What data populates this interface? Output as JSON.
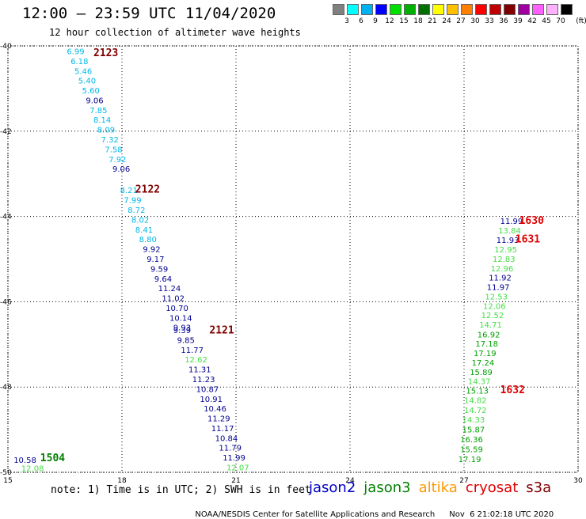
{
  "header": {
    "title": "12:00 – 23:59 UTC 11/04/2020",
    "subtitle": "12 hour collection of altimeter wave heights"
  },
  "legend": {
    "colors": [
      "#808080",
      "#00ffff",
      "#00b0f0",
      "#0000ff",
      "#00e000",
      "#00b000",
      "#007000",
      "#ffff00",
      "#ffc000",
      "#ff8000",
      "#ff0000",
      "#c00000",
      "#800000",
      "#a000a0",
      "#ff60ff",
      "#ffb0ff",
      "#000000"
    ],
    "ticks": [
      "3",
      "6",
      "9",
      "12",
      "15",
      "18",
      "21",
      "24",
      "27",
      "30",
      "33",
      "36",
      "39",
      "42",
      "45",
      "70"
    ],
    "unit": "(ft)"
  },
  "map": {
    "lon_range": [
      15,
      30
    ],
    "lat_range": [
      -50,
      -40
    ],
    "lon_ticks": [
      "15",
      "18",
      "21",
      "24",
      "27",
      "30"
    ],
    "lat_ticks": [
      "-40",
      "-42",
      "-44",
      "-46",
      "-48",
      "-50"
    ]
  },
  "colors": {
    "jason2": "#0000c8",
    "jason3": "#008000",
    "altika": "#ff9900",
    "cryosat": "#e00000",
    "s3a": "#800000",
    "c_lightgreen": "#44dd44",
    "c_green": "#00a000",
    "c_cyan": "#00b8e8",
    "c_navy": "#000090"
  },
  "points": [
    {
      "lon": 16.55,
      "lat": -40.12,
      "v": "6.99",
      "c": "c_cyan"
    },
    {
      "lon": 16.65,
      "lat": -40.35,
      "v": "6.18",
      "c": "c_cyan"
    },
    {
      "lon": 16.75,
      "lat": -40.58,
      "v": "5.46",
      "c": "c_cyan"
    },
    {
      "lon": 16.85,
      "lat": -40.81,
      "v": "5.40",
      "c": "c_cyan"
    },
    {
      "lon": 16.95,
      "lat": -41.04,
      "v": "5.60",
      "c": "c_cyan"
    },
    {
      "lon": 17.05,
      "lat": -41.27,
      "v": "9.06",
      "c": "c_navy"
    },
    {
      "lon": 17.15,
      "lat": -41.5,
      "v": "7.85",
      "c": "c_cyan"
    },
    {
      "lon": 17.25,
      "lat": -41.73,
      "v": "8.14",
      "c": "c_cyan"
    },
    {
      "lon": 17.35,
      "lat": -41.96,
      "v": "8.09",
      "c": "c_cyan"
    },
    {
      "lon": 17.45,
      "lat": -42.19,
      "v": "7.32",
      "c": "c_cyan"
    },
    {
      "lon": 17.55,
      "lat": -42.42,
      "v": "7.58",
      "c": "c_cyan"
    },
    {
      "lon": 17.65,
      "lat": -42.65,
      "v": "7.92",
      "c": "c_cyan"
    },
    {
      "lon": 17.75,
      "lat": -42.88,
      "v": "9.06",
      "c": "c_navy"
    },
    {
      "lon": 17.95,
      "lat": -43.38,
      "v": "8.21",
      "c": "c_cyan"
    },
    {
      "lon": 18.05,
      "lat": -43.61,
      "v": "7.99",
      "c": "c_cyan"
    },
    {
      "lon": 18.15,
      "lat": -43.84,
      "v": "8.72",
      "c": "c_cyan"
    },
    {
      "lon": 18.25,
      "lat": -44.07,
      "v": "8.02",
      "c": "c_cyan"
    },
    {
      "lon": 18.35,
      "lat": -44.3,
      "v": "8.41",
      "c": "c_cyan"
    },
    {
      "lon": 18.45,
      "lat": -44.53,
      "v": "8.80",
      "c": "c_cyan"
    },
    {
      "lon": 18.55,
      "lat": -44.76,
      "v": "9.92",
      "c": "c_navy"
    },
    {
      "lon": 18.65,
      "lat": -44.99,
      "v": "9.17",
      "c": "c_navy"
    },
    {
      "lon": 18.75,
      "lat": -45.22,
      "v": "9.59",
      "c": "c_navy"
    },
    {
      "lon": 18.85,
      "lat": -45.45,
      "v": "9.64",
      "c": "c_navy"
    },
    {
      "lon": 18.95,
      "lat": -45.68,
      "v": "11.24",
      "c": "c_navy"
    },
    {
      "lon": 19.05,
      "lat": -45.91,
      "v": "11.02",
      "c": "c_navy"
    },
    {
      "lon": 19.15,
      "lat": -46.14,
      "v": "10.70",
      "c": "c_navy"
    },
    {
      "lon": 19.25,
      "lat": -46.37,
      "v": "10.14",
      "c": "c_navy"
    },
    {
      "lon": 19.35,
      "lat": -46.6,
      "v": "9.93",
      "c": "c_navy"
    },
    {
      "lon": 19.35,
      "lat": -46.66,
      "v": "9.39",
      "c": "c_navy"
    },
    {
      "lon": 19.45,
      "lat": -46.89,
      "v": "9.85",
      "c": "c_navy"
    },
    {
      "lon": 19.55,
      "lat": -47.12,
      "v": "11.77",
      "c": "c_navy"
    },
    {
      "lon": 19.65,
      "lat": -47.35,
      "v": "12.62",
      "c": "c_lightgreen"
    },
    {
      "lon": 19.75,
      "lat": -47.58,
      "v": "11.31",
      "c": "c_navy"
    },
    {
      "lon": 19.85,
      "lat": -47.81,
      "v": "11.23",
      "c": "c_navy"
    },
    {
      "lon": 19.95,
      "lat": -48.04,
      "v": "10.87",
      "c": "c_navy"
    },
    {
      "lon": 20.05,
      "lat": -48.27,
      "v": "10.91",
      "c": "c_navy"
    },
    {
      "lon": 20.15,
      "lat": -48.5,
      "v": "10.46",
      "c": "c_navy"
    },
    {
      "lon": 20.25,
      "lat": -48.73,
      "v": "11.29",
      "c": "c_navy"
    },
    {
      "lon": 20.35,
      "lat": -48.96,
      "v": "11.17",
      "c": "c_navy"
    },
    {
      "lon": 20.45,
      "lat": -49.19,
      "v": "10.84",
      "c": "c_navy"
    },
    {
      "lon": 20.55,
      "lat": -49.42,
      "v": "11.79",
      "c": "c_navy"
    },
    {
      "lon": 20.65,
      "lat": -49.65,
      "v": "11.99",
      "c": "c_navy"
    },
    {
      "lon": 20.75,
      "lat": -49.88,
      "v": "12.07",
      "c": "c_lightgreen"
    },
    {
      "lon": 15.15,
      "lat": -49.7,
      "v": "10.58",
      "c": "c_navy"
    },
    {
      "lon": 15.35,
      "lat": -49.9,
      "v": "12.08",
      "c": "c_lightgreen"
    },
    {
      "lon": 27.95,
      "lat": -44.1,
      "v": "11.99",
      "c": "c_navy"
    },
    {
      "lon": 27.9,
      "lat": -44.32,
      "v": "13.84",
      "c": "c_lightgreen"
    },
    {
      "lon": 27.85,
      "lat": -44.55,
      "v": "11.93",
      "c": "c_navy"
    },
    {
      "lon": 27.8,
      "lat": -44.77,
      "v": "12.95",
      "c": "c_lightgreen"
    },
    {
      "lon": 27.75,
      "lat": -44.99,
      "v": "12.83",
      "c": "c_lightgreen"
    },
    {
      "lon": 27.7,
      "lat": -45.21,
      "v": "12.96",
      "c": "c_lightgreen"
    },
    {
      "lon": 27.65,
      "lat": -45.43,
      "v": "11.92",
      "c": "c_navy"
    },
    {
      "lon": 27.6,
      "lat": -45.65,
      "v": "11.97",
      "c": "c_navy"
    },
    {
      "lon": 27.55,
      "lat": -45.87,
      "v": "12.53",
      "c": "c_lightgreen"
    },
    {
      "lon": 27.5,
      "lat": -46.09,
      "v": "12.06",
      "c": "c_lightgreen"
    },
    {
      "lon": 27.45,
      "lat": -46.31,
      "v": "12.52",
      "c": "c_lightgreen"
    },
    {
      "lon": 27.4,
      "lat": -46.53,
      "v": "14.71",
      "c": "c_lightgreen"
    },
    {
      "lon": 27.35,
      "lat": -46.76,
      "v": "16.92",
      "c": "c_green"
    },
    {
      "lon": 27.3,
      "lat": -46.98,
      "v": "17.18",
      "c": "c_green"
    },
    {
      "lon": 27.25,
      "lat": -47.2,
      "v": "17.19",
      "c": "c_green"
    },
    {
      "lon": 27.2,
      "lat": -47.42,
      "v": "17.24",
      "c": "c_green"
    },
    {
      "lon": 27.15,
      "lat": -47.64,
      "v": "15.89",
      "c": "c_green"
    },
    {
      "lon": 27.1,
      "lat": -47.86,
      "v": "14.37",
      "c": "c_lightgreen"
    },
    {
      "lon": 27.05,
      "lat": -48.08,
      "v": "15.13",
      "c": "c_green"
    },
    {
      "lon": 27.0,
      "lat": -48.3,
      "v": "14.82",
      "c": "c_lightgreen"
    },
    {
      "lon": 27.0,
      "lat": -48.53,
      "v": "14.72",
      "c": "c_lightgreen"
    },
    {
      "lon": 26.95,
      "lat": -48.76,
      "v": "14.33",
      "c": "c_lightgreen"
    },
    {
      "lon": 26.95,
      "lat": -48.99,
      "v": "15.87",
      "c": "c_green"
    },
    {
      "lon": 26.9,
      "lat": -49.22,
      "v": "16.36",
      "c": "c_green"
    },
    {
      "lon": 26.9,
      "lat": -49.45,
      "v": "15.59",
      "c": "c_green"
    },
    {
      "lon": 26.85,
      "lat": -49.68,
      "v": "17.19",
      "c": "c_green"
    }
  ],
  "revs": [
    {
      "lon": 17.25,
      "lat": -40.15,
      "label": "2123",
      "c": "s3a"
    },
    {
      "lon": 18.35,
      "lat": -43.35,
      "label": "2122",
      "c": "s3a"
    },
    {
      "lon": 20.3,
      "lat": -46.65,
      "label": "2121",
      "c": "s3a"
    },
    {
      "lon": 15.85,
      "lat": -49.65,
      "label": "1504",
      "c": "jason3"
    },
    {
      "lon": 28.45,
      "lat": -44.08,
      "label": "1630",
      "c": "cryosat"
    },
    {
      "lon": 28.35,
      "lat": -44.52,
      "label": "1631",
      "c": "cryosat"
    },
    {
      "lon": 27.95,
      "lat": -48.05,
      "label": "1632",
      "c": "cryosat"
    }
  ],
  "note": "note: 1) Time is in UTC; 2) SWH is in feet",
  "satellites": [
    {
      "name": "jason2",
      "c": "jason2"
    },
    {
      "name": "jason3",
      "c": "jason3"
    },
    {
      "name": "altika",
      "c": "altika"
    },
    {
      "name": "cryosat",
      "c": "cryosat"
    },
    {
      "name": "s3a",
      "c": "s3a"
    }
  ],
  "footer": {
    "credit": "NOAA/NESDIS Center for Satellite Applications and Research",
    "timestamp": "Nov  6 21:02:18 UTC 2020"
  }
}
